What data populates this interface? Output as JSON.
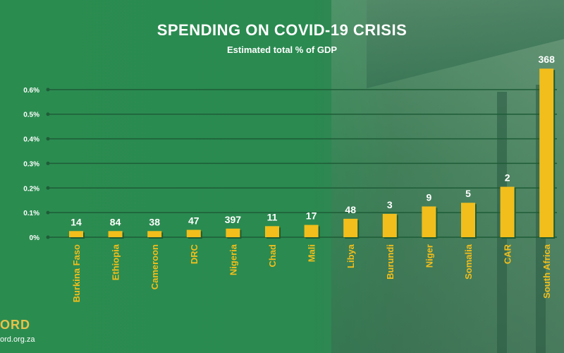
{
  "chart_data": {
    "type": "bar",
    "title": "SPENDING ON COVID-19 CRISIS",
    "subtitle": "Estimated total % of GDP",
    "categories": [
      "Burkina Faso",
      "Ethiopia",
      "Cameroon",
      "DRC",
      "Nigeria",
      "Chad",
      "Mali",
      "Libya",
      "Burundi",
      "Niger",
      "Somalia",
      "CAR",
      "South Africa"
    ],
    "values": [
      0.025,
      0.025,
      0.025,
      0.03,
      0.035,
      0.045,
      0.05,
      0.075,
      0.095,
      0.125,
      0.14,
      0.205,
      0.685
    ],
    "data_labels": [
      "14",
      "84",
      "38",
      "47",
      "397",
      "11",
      "17",
      "48",
      "3",
      "9",
      "5",
      "2",
      "368"
    ],
    "ylim": [
      0,
      0.7
    ],
    "yticks": [
      0,
      0.1,
      0.2,
      0.3,
      0.4,
      0.5,
      0.6
    ],
    "ytick_labels": [
      "0%",
      "0.1%",
      "0.2%",
      "0.3%",
      "0.4%",
      "0.5%",
      "0.6%"
    ],
    "grid": true,
    "xlabel": "",
    "ylabel": ""
  },
  "colors": {
    "bar": "#f2be1b",
    "bar_shadow": "#1d5a34",
    "grid": "#1e5c37",
    "text": "#ffffff"
  },
  "branding": {
    "logo": "ORD",
    "website": "ord.org.za"
  }
}
